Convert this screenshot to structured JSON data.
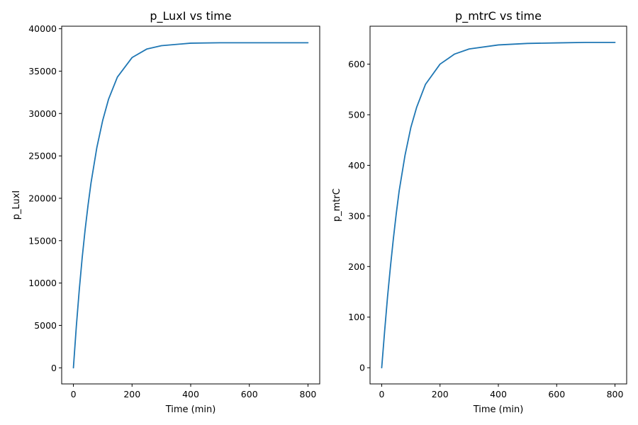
{
  "chart_data": [
    {
      "type": "line",
      "title": "p_LuxI vs time",
      "xlabel": "Time (min)",
      "ylabel": "p_LuxI",
      "xlim": [
        -40,
        840
      ],
      "ylim": [
        -1900,
        40300
      ],
      "xticks": [
        0,
        200,
        400,
        600,
        800
      ],
      "yticks": [
        0,
        5000,
        10000,
        15000,
        20000,
        25000,
        30000,
        35000,
        40000
      ],
      "grid": false,
      "color": "#1f77b4",
      "x": [
        0,
        10,
        20,
        30,
        40,
        50,
        60,
        80,
        100,
        120,
        150,
        200,
        250,
        300,
        400,
        500,
        600,
        700,
        800
      ],
      "y": [
        0,
        4900,
        9200,
        13000,
        16300,
        19200,
        21800,
        26000,
        29200,
        31700,
        34300,
        36600,
        37600,
        38000,
        38300,
        38350,
        38350,
        38350,
        38350
      ]
    },
    {
      "type": "line",
      "title": "p_mtrC vs time",
      "xlabel": "Time (min)",
      "ylabel": "p_mtrC",
      "xlim": [
        -40,
        840
      ],
      "ylim": [
        -32,
        675
      ],
      "xticks": [
        0,
        200,
        400,
        600,
        800
      ],
      "yticks": [
        0,
        100,
        200,
        300,
        400,
        500,
        600
      ],
      "grid": false,
      "color": "#1f77b4",
      "x": [
        0,
        10,
        20,
        30,
        40,
        50,
        60,
        80,
        100,
        120,
        150,
        200,
        250,
        300,
        400,
        500,
        600,
        700,
        800
      ],
      "y": [
        0,
        72,
        140,
        200,
        255,
        305,
        350,
        420,
        475,
        515,
        560,
        600,
        620,
        630,
        638,
        641,
        642,
        643,
        643
      ]
    }
  ]
}
